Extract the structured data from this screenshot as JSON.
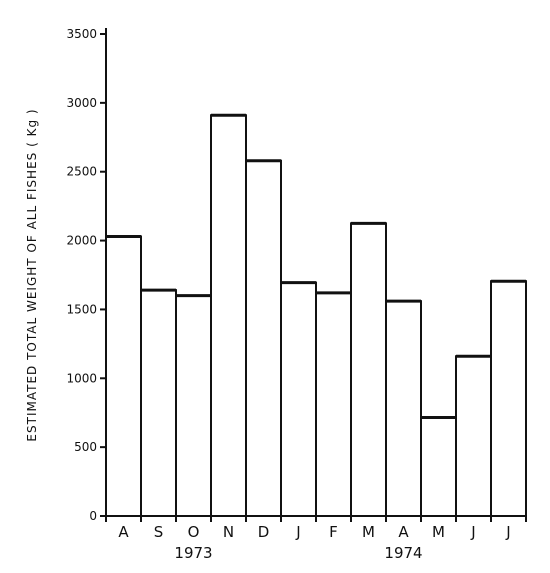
{
  "chart_data": {
    "type": "bar",
    "title": "",
    "xlabel": "",
    "ylabel": "ESTIMATED TOTAL WEIGHT OF ALL FISHES ( Kg )",
    "categories": [
      "A",
      "S",
      "O",
      "N",
      "D",
      "J",
      "F",
      "M",
      "A",
      "M",
      "J",
      "J"
    ],
    "values": [
      2030,
      1640,
      1600,
      2910,
      2580,
      1695,
      1620,
      2125,
      1560,
      715,
      1160,
      1705
    ],
    "year_groups": [
      {
        "label": "1973",
        "start": 0,
        "end": 4
      },
      {
        "label": "1974",
        "start": 5,
        "end": 11
      }
    ],
    "yticks": [
      0,
      500,
      1000,
      1500,
      2000,
      2500,
      3000,
      3500
    ],
    "ylim": [
      0,
      3500
    ],
    "grid": false,
    "legend": "none"
  }
}
